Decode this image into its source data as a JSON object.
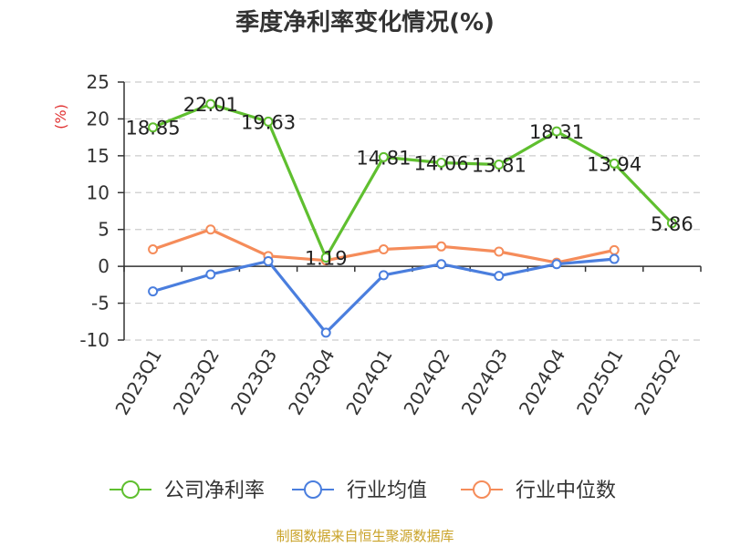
{
  "chart_data": {
    "type": "line",
    "title": "季度净利率变化情况(%)",
    "ylabel": "(%)",
    "ylim": [
      -10,
      25
    ],
    "yticks": [
      25,
      20,
      15,
      10,
      5,
      0,
      -5,
      -10
    ],
    "categories": [
      "2023Q1",
      "2023Q2",
      "2023Q3",
      "2023Q4",
      "2024Q1",
      "2024Q2",
      "2024Q3",
      "2024Q4",
      "2025Q1",
      "2025Q2"
    ],
    "grid": true,
    "legend_position": "bottom",
    "series": [
      {
        "name": "公司净利率",
        "color": "#5fbf2f",
        "values": [
          18.85,
          22.01,
          19.63,
          1.19,
          14.81,
          14.06,
          13.81,
          18.31,
          13.94,
          5.86
        ],
        "labels": [
          "18.85",
          "22.01",
          "19.63",
          "1.19",
          "14.81",
          "14.06",
          "13.81",
          "18.31",
          "13.94",
          "5.86"
        ]
      },
      {
        "name": "行业均值",
        "color": "#4a7ede",
        "values": [
          -3.4,
          -1.1,
          0.7,
          -9.0,
          -1.2,
          0.3,
          -1.3,
          0.3,
          1.0,
          null
        ]
      },
      {
        "name": "行业中位数",
        "color": "#f58c5a",
        "values": [
          2.3,
          5.0,
          1.4,
          0.8,
          2.3,
          2.7,
          2.0,
          0.5,
          2.2,
          null
        ]
      }
    ],
    "source": "制图数据来自恒生聚源数据库",
    "colors": {
      "axis": "#333333",
      "grid": "#cccccc",
      "ylabel": "#e03030",
      "source": "#c9a227"
    }
  }
}
